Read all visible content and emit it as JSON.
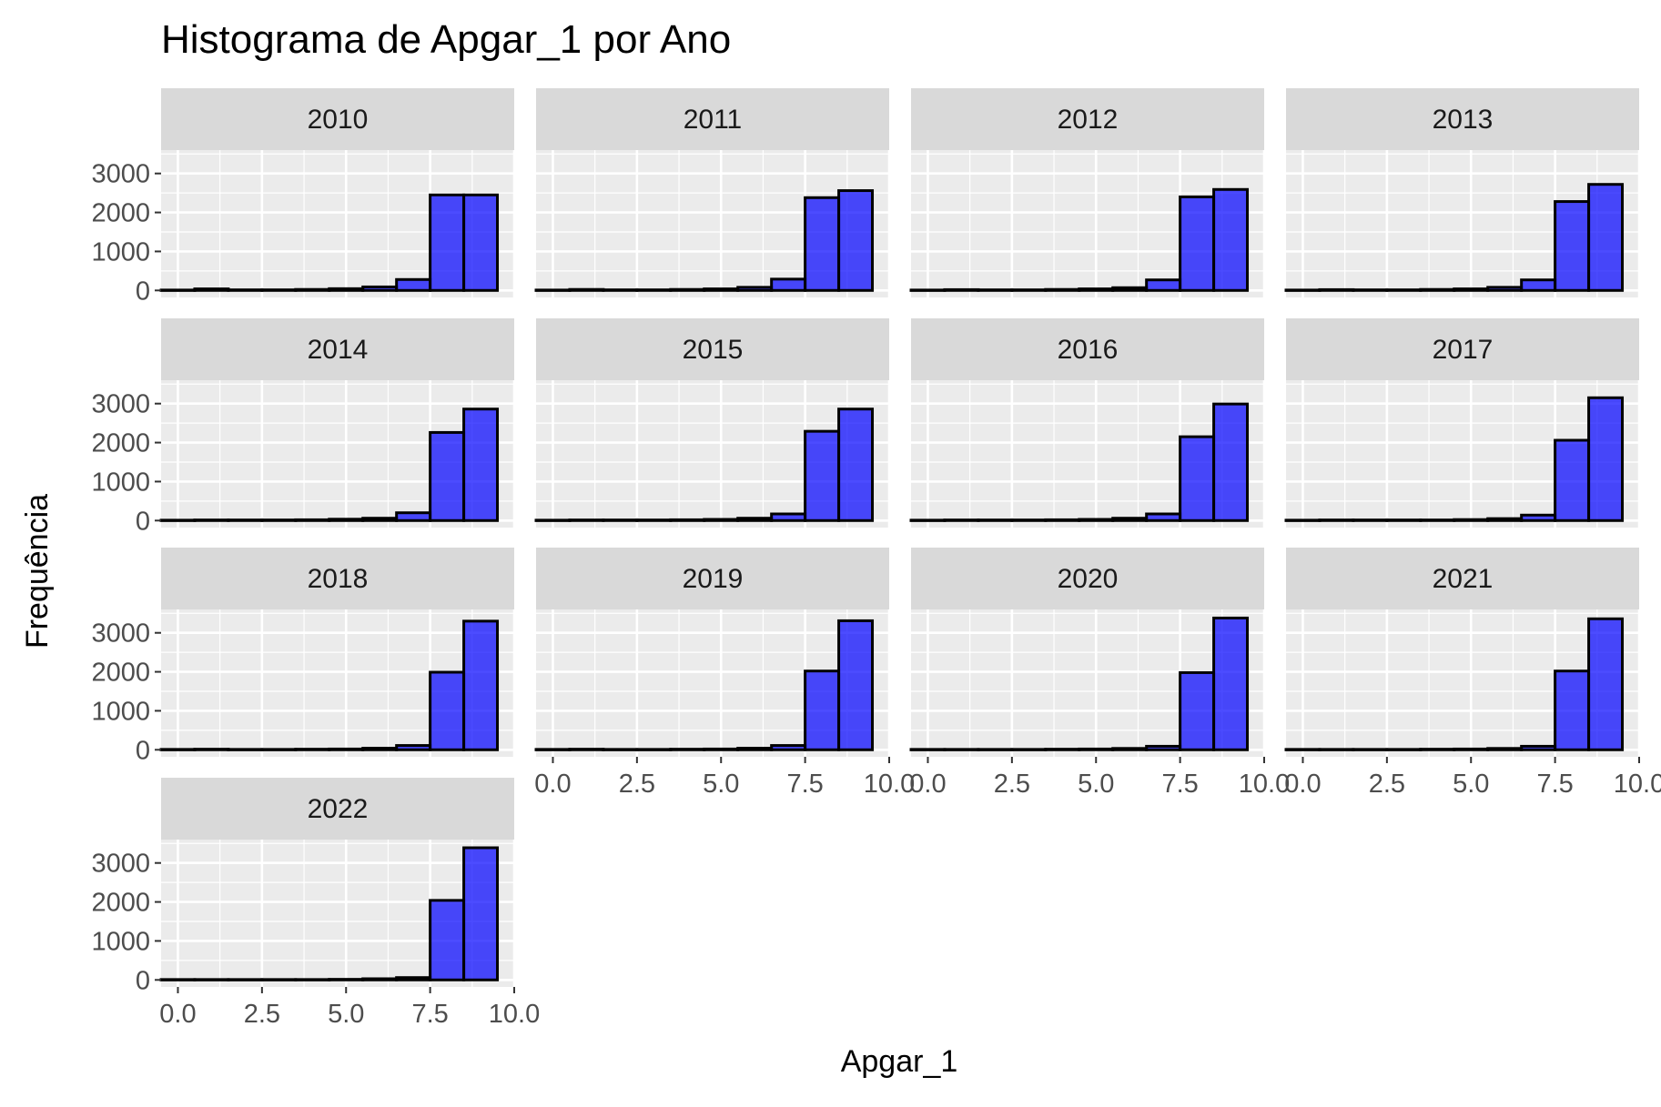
{
  "chart_data": {
    "type": "bar",
    "title": "Histograma de Apgar_1 por Ano",
    "xlabel": "Apgar_1",
    "ylabel": "Frequência",
    "xlim": [
      -0.5,
      10.0
    ],
    "ylim": [
      0,
      3600
    ],
    "x_ticks": [
      "0.0",
      "2.5",
      "5.0",
      "7.5",
      "10.0"
    ],
    "y_ticks": [
      "0",
      "1000",
      "2000",
      "3000"
    ],
    "grid": true,
    "bin_centers": [
      0,
      1,
      2,
      3,
      4,
      5,
      6,
      7,
      8,
      9
    ],
    "bar_fill": "#0000ff",
    "bar_fill_opacity": 0.7,
    "bar_stroke": "#000000",
    "strip_bg": "#d9d9d9",
    "panel_bg": "#ebebeb",
    "panels": [
      {
        "year": "2010",
        "values": [
          10,
          40,
          15,
          15,
          25,
          45,
          90,
          280,
          2450,
          2450
        ]
      },
      {
        "year": "2011",
        "values": [
          10,
          25,
          15,
          15,
          25,
          40,
          80,
          290,
          2380,
          2560
        ]
      },
      {
        "year": "2012",
        "values": [
          10,
          20,
          15,
          15,
          25,
          40,
          70,
          270,
          2400,
          2590
        ]
      },
      {
        "year": "2013",
        "values": [
          10,
          20,
          15,
          15,
          25,
          40,
          80,
          270,
          2280,
          2720
        ]
      },
      {
        "year": "2014",
        "values": [
          10,
          15,
          15,
          15,
          20,
          35,
          60,
          200,
          2260,
          2860
        ]
      },
      {
        "year": "2015",
        "values": [
          10,
          15,
          15,
          15,
          20,
          30,
          60,
          170,
          2290,
          2860
        ]
      },
      {
        "year": "2016",
        "values": [
          10,
          15,
          15,
          15,
          20,
          30,
          60,
          170,
          2150,
          2990
        ]
      },
      {
        "year": "2017",
        "values": [
          10,
          15,
          15,
          15,
          15,
          25,
          50,
          140,
          2060,
          3150
        ]
      },
      {
        "year": "2018",
        "values": [
          10,
          15,
          10,
          10,
          15,
          20,
          40,
          110,
          1990,
          3300
        ]
      },
      {
        "year": "2019",
        "values": [
          10,
          15,
          10,
          10,
          15,
          20,
          40,
          110,
          2020,
          3310
        ]
      },
      {
        "year": "2020",
        "values": [
          10,
          10,
          10,
          10,
          15,
          20,
          35,
          90,
          1980,
          3380
        ]
      },
      {
        "year": "2021",
        "values": [
          10,
          10,
          10,
          10,
          15,
          20,
          35,
          90,
          2020,
          3360
        ]
      },
      {
        "year": "2022",
        "values": [
          10,
          10,
          10,
          10,
          10,
          15,
          30,
          60,
          2040,
          3390
        ]
      }
    ]
  }
}
